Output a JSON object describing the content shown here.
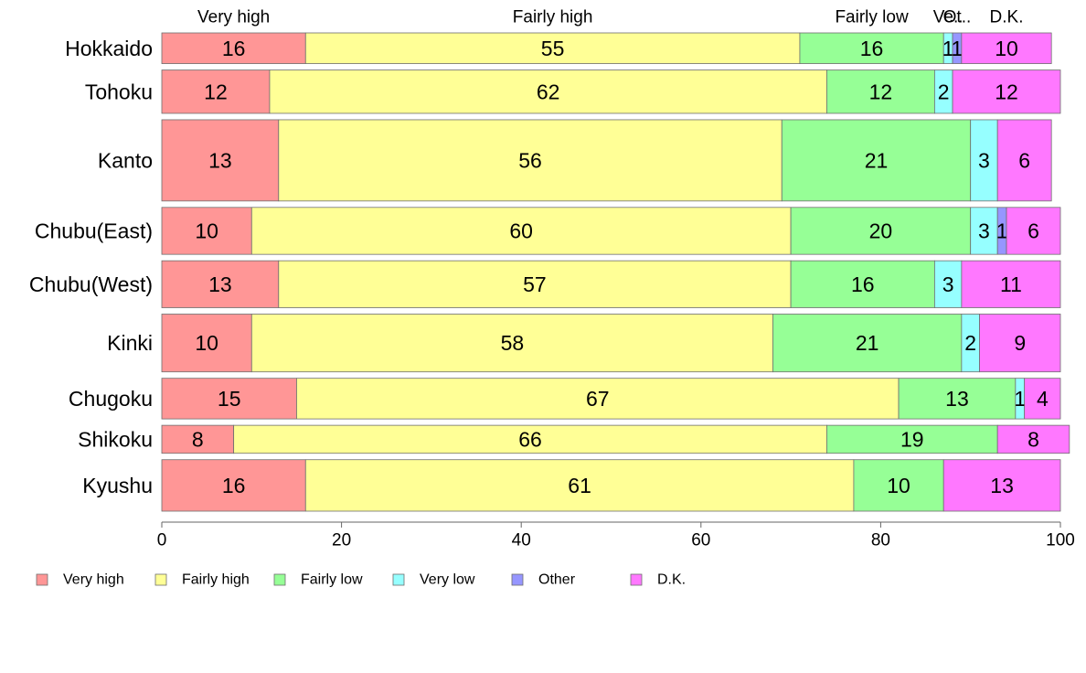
{
  "chart_data": {
    "type": "bar",
    "orientation": "horizontal",
    "stacked": true,
    "title": "",
    "xlabel": "",
    "ylabel": "",
    "xlim": [
      0,
      100
    ],
    "xticks": [
      0,
      20,
      40,
      60,
      80,
      100
    ],
    "grid": false,
    "legend_position": "bottom",
    "categories": [
      "Hokkaido",
      "Tohoku",
      "Kanto",
      "Chubu(East)",
      "Chubu(West)",
      "Kinki",
      "Chugoku",
      "Shikoku",
      "Kyushu"
    ],
    "relative_row_heights": [
      34,
      48,
      90,
      52,
      52,
      64,
      45,
      31,
      57
    ],
    "series": [
      {
        "name": "Very high",
        "color": "#ff9696",
        "values": [
          16,
          12,
          13,
          10,
          13,
          10,
          15,
          8,
          16
        ]
      },
      {
        "name": "Fairly high",
        "color": "#ffff96",
        "values": [
          55,
          62,
          56,
          60,
          57,
          58,
          67,
          66,
          61
        ]
      },
      {
        "name": "Fairly low",
        "color": "#96ff96",
        "values": [
          16,
          12,
          21,
          20,
          16,
          21,
          13,
          19,
          10
        ]
      },
      {
        "name": "Very low",
        "color": "#96ffff",
        "values": [
          1,
          2,
          3,
          3,
          3,
          2,
          1,
          0,
          0
        ]
      },
      {
        "name": "Other",
        "color": "#9696ff",
        "values": [
          1,
          0,
          0,
          1,
          0,
          0,
          0,
          0,
          0
        ]
      },
      {
        "name": "D.K.",
        "color": "#ff78ff",
        "values": [
          10,
          12,
          6,
          6,
          11,
          9,
          4,
          8,
          13
        ]
      }
    ],
    "top_labels": [
      "Very high",
      "Fairly high",
      "Fairly low",
      "Ve..",
      "Ot..",
      "D.K."
    ],
    "legend_labels": [
      "Very high",
      "Fairly high",
      "Fairly low",
      "Very low",
      "Other",
      "D.K."
    ]
  }
}
